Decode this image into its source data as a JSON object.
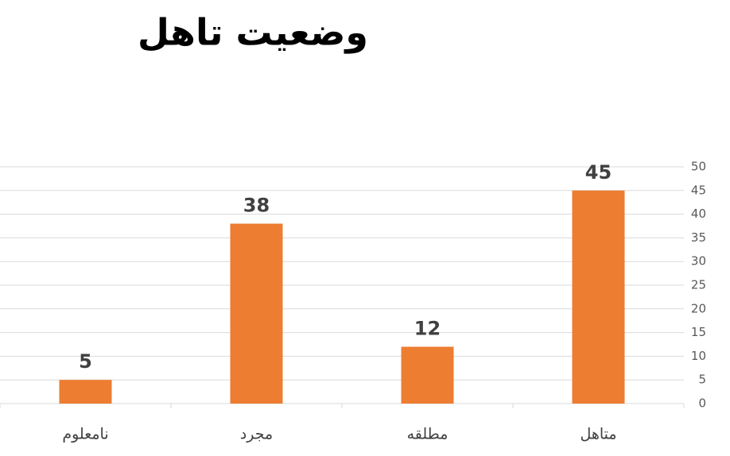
{
  "chart_data": {
    "type": "bar",
    "title": "وضعیت تاهل",
    "categories": [
      "متاهل",
      "مطلقه",
      "مجرد",
      "نامعلوم"
    ],
    "values": [
      45,
      12,
      38,
      5
    ],
    "color": "#ed7d31",
    "ylim": [
      0,
      50
    ],
    "yticks": [
      0,
      5,
      10,
      15,
      20,
      25,
      30,
      35,
      40,
      45,
      50
    ],
    "grid": true
  }
}
